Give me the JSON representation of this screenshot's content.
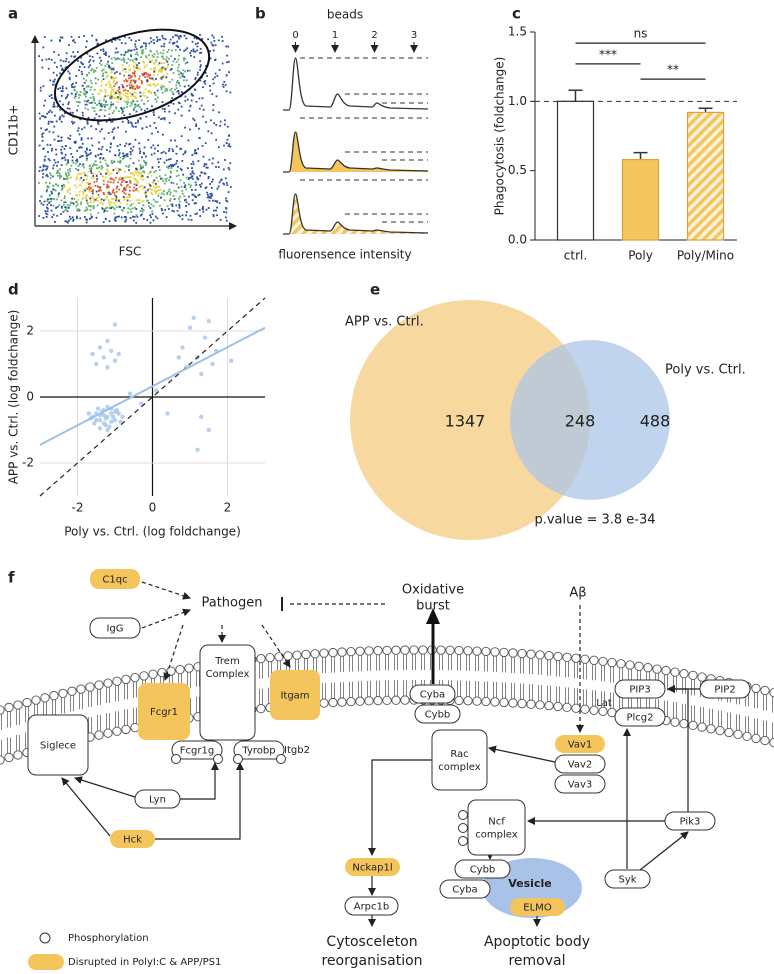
{
  "panel_labels": [
    "a",
    "b",
    "c",
    "d",
    "e",
    "f"
  ],
  "panel_a": {
    "x_label": "FSC",
    "y_label": "CD11b+"
  },
  "panel_b": {
    "title": "beads",
    "bead_ticks": [
      0,
      1,
      2,
      3
    ],
    "x_label": "fluorensence intensity"
  },
  "chart_data": [
    {
      "type": "bar",
      "y_label": "Phagocytosis (foldchange)",
      "categories": [
        "ctrl.",
        "Poly",
        "Poly/Mino"
      ],
      "values": [
        1.0,
        0.58,
        0.92
      ],
      "errors": [
        0.08,
        0.05,
        0.03
      ],
      "colors": [
        "#ffffff",
        "#f4c55d",
        "#f4c55d"
      ],
      "hatched": [
        false,
        false,
        true
      ],
      "ylim": [
        0,
        1.5
      ],
      "yticks": [
        {
          "value": 0,
          "label": "0.0"
        },
        {
          "value": 0.5,
          "label": "0.5"
        },
        {
          "value": 1,
          "label": "1.0"
        },
        {
          "value": 1.5,
          "label": "1.5"
        }
      ],
      "reference_line": 1.0,
      "significance": [
        {
          "label": "ns",
          "between": [
            "ctrl.",
            "Poly/Mino"
          ],
          "y": 1.42
        },
        {
          "label": "***",
          "between": [
            "ctrl.",
            "Poly"
          ],
          "y": 1.27
        },
        {
          "label": "**",
          "between": [
            "Poly",
            "Poly/Mino"
          ],
          "y": 1.16
        }
      ]
    },
    {
      "type": "scatter",
      "x_label": "Poly vs. Ctrl. (log foldchange)",
      "y_label": "APP vs. Ctrl. (log foldchange)",
      "xlim": [
        -3,
        3
      ],
      "ylim": [
        -3,
        3
      ],
      "xticks": [
        -2,
        0,
        2
      ],
      "yticks": [
        -2,
        0,
        2
      ],
      "grid": true,
      "color": "#a9c8ea",
      "identity_line": true,
      "fit": {
        "x": [
          -3,
          3
        ],
        "y": [
          -1.45,
          2.1
        ],
        "color": "#9dc0e6"
      },
      "x": [
        -1.5,
        -1.4,
        -1.3,
        -1.2,
        -1.1,
        -1.0,
        -1.3,
        -1.2,
        -1.6,
        -0.9,
        -1.4,
        -1.1,
        -1.25,
        -1.35,
        -1.05,
        -1.5,
        -0.95,
        -1.15,
        -1.45,
        -1.7,
        -1.2,
        -0.8,
        -1.3,
        -1.0,
        -1.55,
        -1.1,
        -1.25,
        -0.85,
        -1.4,
        -1.65,
        -1.3,
        -1.1,
        -1.0,
        -1.4,
        -1.2,
        -0.9,
        -1.5,
        -1.0,
        -1.2,
        -1.6,
        0.8,
        1.0,
        1.2,
        1.4,
        0.9,
        1.6,
        1.1,
        1.3,
        1.7,
        0.7,
        2.1,
        1.5,
        1.5,
        1.2,
        0.1,
        -0.3,
        0.4,
        1.3,
        -0.6
      ],
      "y": [
        -0.5,
        -0.7,
        -0.4,
        -0.6,
        -0.5,
        -0.7,
        -0.8,
        -0.3,
        -0.6,
        -0.5,
        -0.55,
        -0.75,
        -0.65,
        -0.45,
        -0.6,
        -0.7,
        -0.4,
        -0.9,
        -0.35,
        -0.5,
        -1.0,
        -0.6,
        -0.55,
        -0.45,
        -0.8,
        -0.35,
        -0.85,
        -0.75,
        -0.95,
        -0.65,
        1.2,
        1.4,
        1.1,
        1.5,
        1.7,
        1.3,
        1.0,
        2.2,
        0.9,
        1.3,
        1.5,
        2.1,
        1.2,
        1.8,
        0.9,
        1.0,
        2.4,
        0.7,
        1.4,
        1.2,
        1.1,
        2.3,
        -1.0,
        -1.6,
        0.2,
        -0.2,
        -0.5,
        -0.6,
        0.1
      ]
    }
  ],
  "panel_e": {
    "sets": [
      "APP vs. Ctrl.",
      "Poly vs. Ctrl."
    ],
    "counts": [
      1347,
      248,
      488
    ],
    "p_value": "p.value = 3.8 e-34"
  },
  "panel_f": {
    "stimuli": [
      "Pathogen",
      [
        "Oxidative",
        "burst"
      ],
      "Aβ"
    ],
    "nodes": [
      {
        "label": "C1qc",
        "disrupted": true
      },
      {
        "label": "IgG",
        "disrupted": false
      },
      {
        "label": "Fcgr1",
        "disrupted": true
      },
      {
        "label": [
          "Trem",
          "Complex"
        ],
        "disrupted": false
      },
      {
        "label": "Itgam",
        "disrupted": true
      },
      {
        "label": "Siglece",
        "disrupted": false
      },
      {
        "label": "Fcgr1g",
        "disrupted": false
      },
      {
        "label": "Tyrobp",
        "disrupted": false
      },
      {
        "label": "Lyn",
        "disrupted": false
      },
      {
        "label": "Hck",
        "disrupted": true
      },
      {
        "label": "Cyba",
        "disrupted": false
      },
      {
        "label": "Cybb",
        "disrupted": false
      },
      {
        "label": [
          "Rac",
          "complex"
        ],
        "disrupted": false
      },
      {
        "label": "Vav1",
        "disrupted": true
      },
      {
        "label": "Vav2",
        "disrupted": false
      },
      {
        "label": "Vav3",
        "disrupted": false
      },
      {
        "label": "PIP3",
        "disrupted": false
      },
      {
        "label": "PIP2",
        "disrupted": false
      },
      {
        "label": "Plcg2",
        "disrupted": false
      },
      {
        "label": [
          "Ncf",
          "complex"
        ],
        "disrupted": false
      },
      {
        "label": "Pik3",
        "disrupted": false
      },
      {
        "label": "Syk",
        "disrupted": false
      },
      {
        "label": "Nckap1l",
        "disrupted": true
      },
      {
        "label": "Arpc1b",
        "disrupted": false
      },
      {
        "label": "Cybb",
        "disrupted": false
      },
      {
        "label": "Cyba",
        "disrupted": false
      },
      {
        "label": "ELMO",
        "disrupted": true
      }
    ],
    "plain_labels": [
      "Itgb2",
      "Lat"
    ],
    "vesicle": "Vesicle",
    "outcomes": [
      [
        "Cytosceleton",
        "reorganisation"
      ],
      [
        "Apoptotic body",
        "removal"
      ]
    ],
    "legend": [
      "Phosphorylation",
      "Disrupted in PolyI:C & APP/PS1"
    ]
  }
}
